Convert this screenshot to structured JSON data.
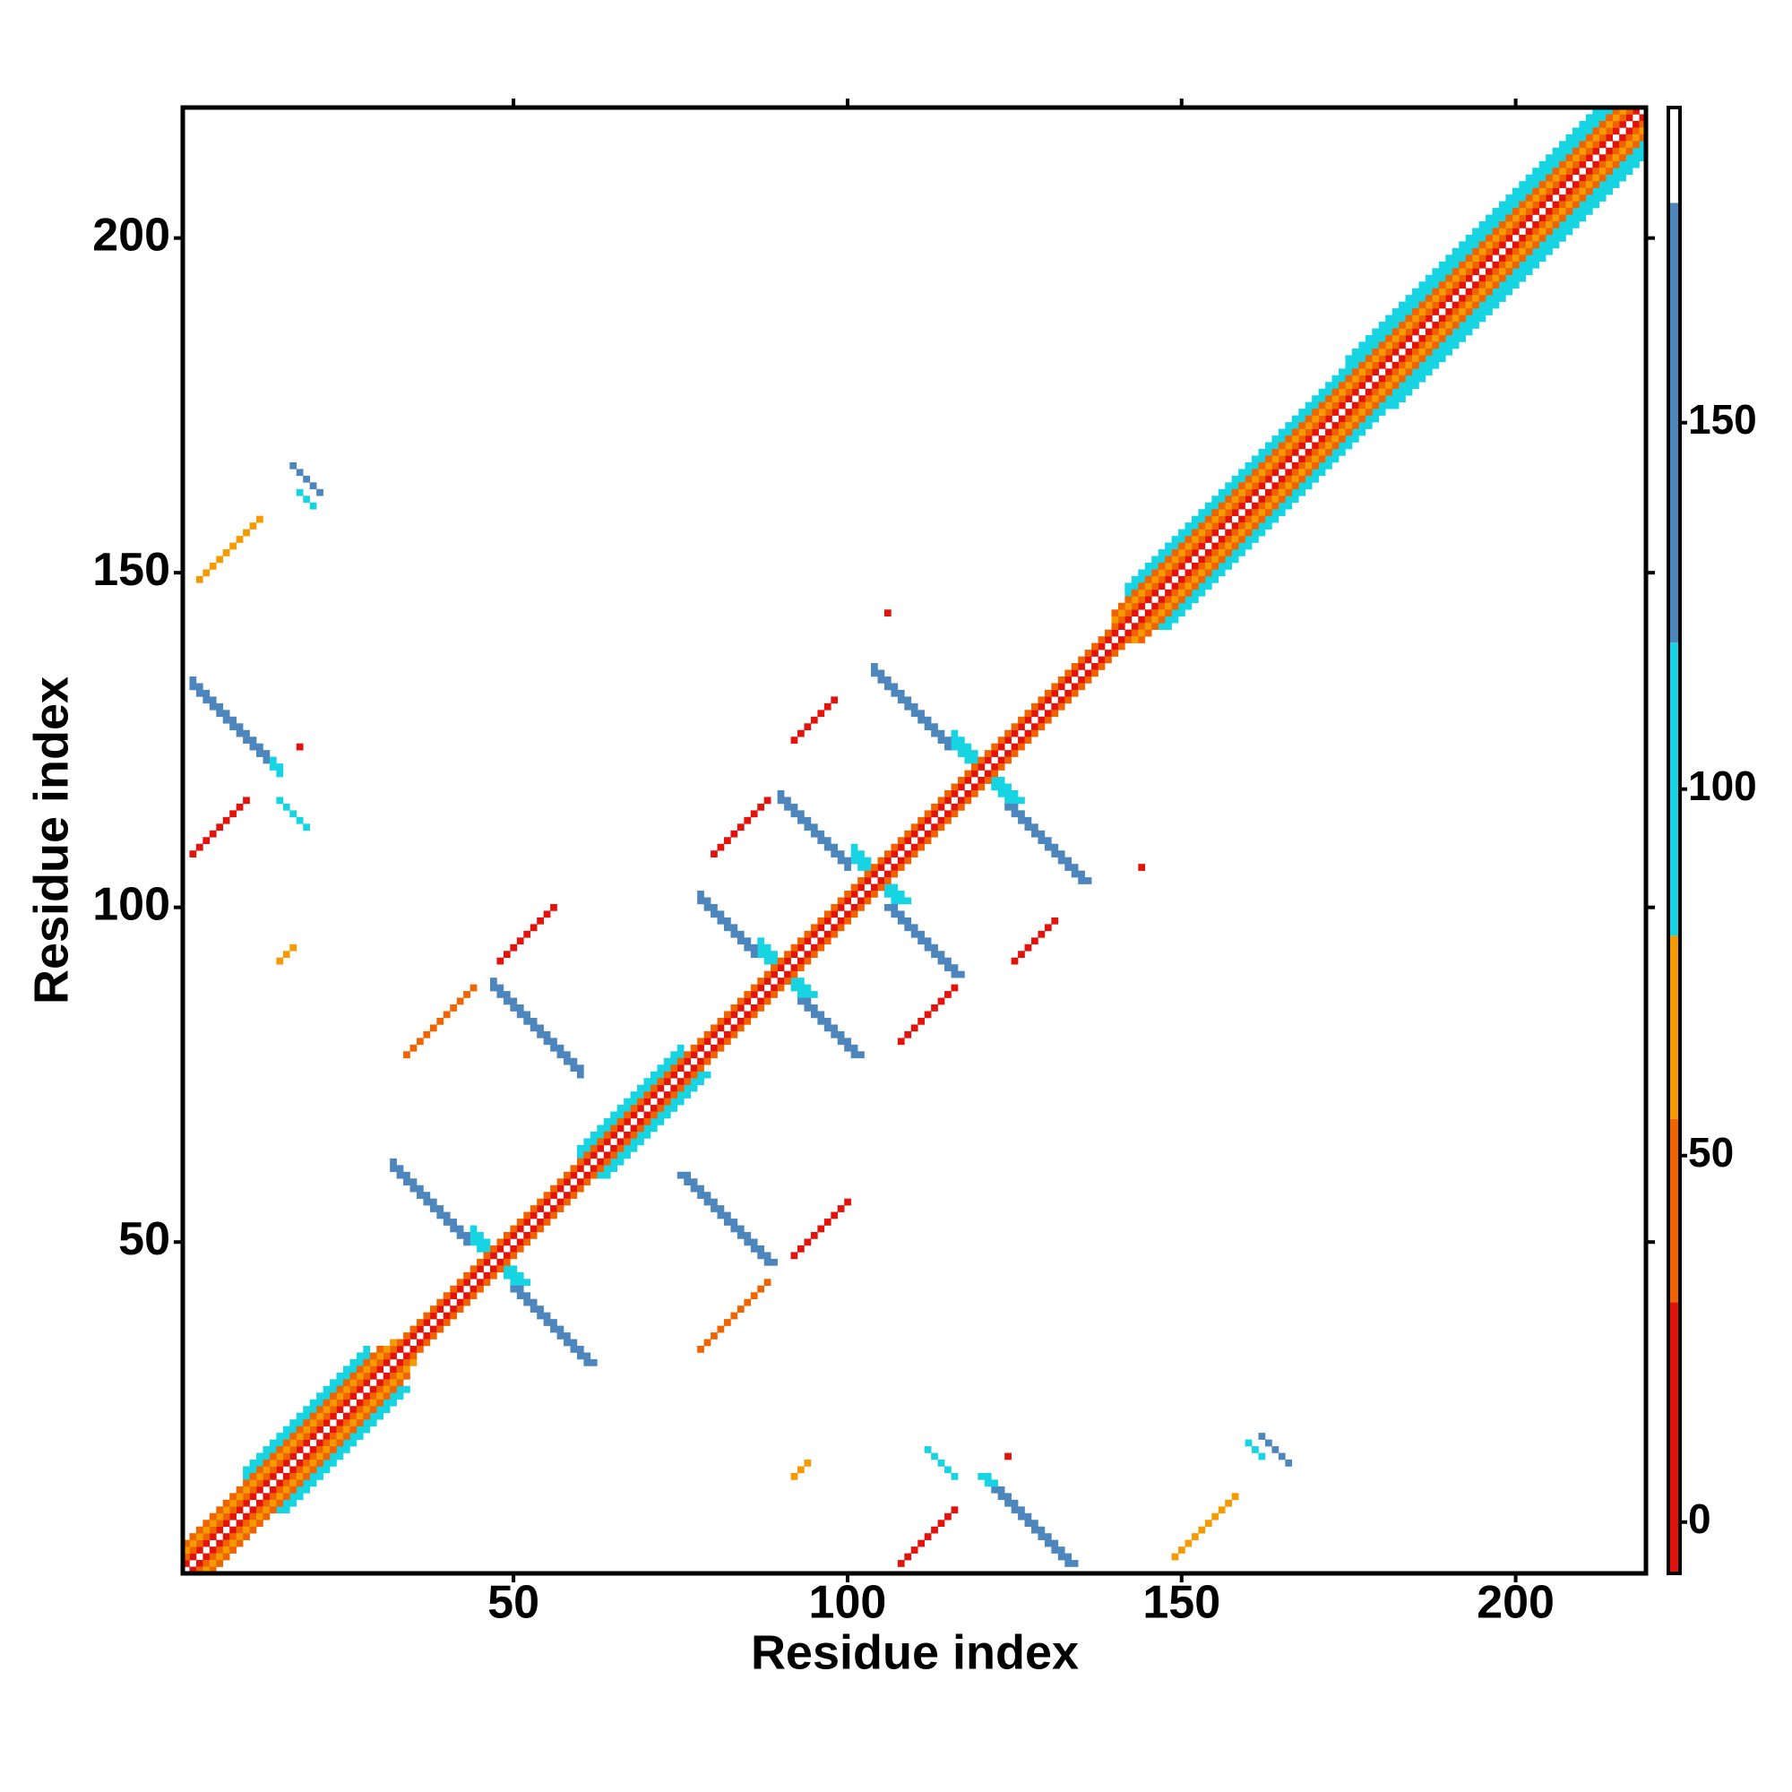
{
  "chart_data": {
    "type": "contact-map",
    "x_label": "Residue index",
    "y_label": "Residue index",
    "xlim": [
      0.5,
      219.5
    ],
    "ylim": [
      0.5,
      219.5
    ],
    "xticks": [
      50,
      100,
      150,
      200
    ],
    "yticks": [
      50,
      100,
      150,
      200
    ],
    "symmetric": true,
    "colorbar": {
      "lim": [
        -7,
        193
      ],
      "ticks": [
        0,
        50,
        100,
        150
      ],
      "bounds": [
        -7,
        30,
        55,
        80,
        120,
        180,
        193
      ],
      "colors": [
        "#e3120b",
        "#f06400",
        "#f59a00",
        "#17d4e3",
        "#4d86bd",
        "#ffffff"
      ]
    },
    "cells": [
      {
        "kind": "anti",
        "sum": 94,
        "from": 44,
        "to": 46,
        "width": 3,
        "value": 100
      },
      {
        "kind": "anti",
        "sum": 180,
        "from": 87,
        "to": 89,
        "width": 3,
        "value": 100
      },
      {
        "kind": "anti",
        "sum": 208,
        "from": 101,
        "to": 103,
        "width": 3,
        "value": 100
      },
      {
        "kind": "anti",
        "sum": 240,
        "from": 116,
        "to": 119,
        "width": 3,
        "value": 100
      },
      {
        "kind": "anti",
        "sum": 93,
        "from": 32,
        "to": 43,
        "width": 2,
        "value": 150
      },
      {
        "kind": "anti",
        "sum": 135,
        "from": 47,
        "to": 60,
        "width": 2,
        "value": 150
      },
      {
        "kind": "anti",
        "sum": 179,
        "from": 78,
        "to": 86,
        "width": 2,
        "value": 150
      },
      {
        "kind": "anti",
        "sum": 206,
        "from": 90,
        "to": 100,
        "width": 2,
        "value": 150
      },
      {
        "kind": "anti",
        "sum": 239,
        "from": 104,
        "to": 115,
        "width": 2,
        "value": 150
      },
      {
        "kind": "anti",
        "sum": 135,
        "from": 2,
        "to": 13,
        "width": 2,
        "value": 150
      },
      {
        "kind": "anti",
        "sum": 135,
        "from": 14,
        "to": 15,
        "width": 2,
        "value": 100
      },
      {
        "kind": "anti",
        "sum": 131,
        "from": 15,
        "to": 19,
        "width": 1,
        "value": 100
      },
      {
        "kind": "anti",
        "sum": 183,
        "from": 17,
        "to": 21,
        "width": 1,
        "value": 150
      },
      {
        "kind": "anti",
        "sum": 180,
        "from": 18,
        "to": 20,
        "width": 1,
        "value": 100
      },
      {
        "kind": "parallel",
        "offset": 106,
        "from": 2,
        "to": 10,
        "width": 1,
        "value": 15
      },
      {
        "kind": "parallel",
        "offset": 106,
        "from": 18,
        "to": 18,
        "width": 1,
        "value": 15
      },
      {
        "kind": "parallel",
        "offset": 146,
        "from": 3,
        "to": 12,
        "width": 1,
        "value": 65
      },
      {
        "kind": "parallel",
        "offset": 44,
        "from": 34,
        "to": 44,
        "width": 1,
        "value": 40
      },
      {
        "kind": "parallel",
        "offset": 44,
        "from": 48,
        "to": 56,
        "width": 1,
        "value": 15
      },
      {
        "kind": "parallel",
        "offset": 28,
        "from": 80,
        "to": 88,
        "width": 1,
        "value": 15
      },
      {
        "kind": "parallel",
        "offset": 33,
        "from": 92,
        "to": 98,
        "width": 1,
        "value": 15
      },
      {
        "kind": "parallel",
        "offset": 38,
        "from": 106,
        "to": 106,
        "width": 1,
        "value": 15
      },
      {
        "kind": "parallel",
        "offset": 77,
        "from": 15,
        "to": 17,
        "width": 1,
        "value": 65
      },
      {
        "kind": "parallel",
        "offset": 5,
        "from": 10,
        "to": 28,
        "width": 2,
        "value": 100
      },
      {
        "kind": "parallel",
        "offset": 5,
        "from": 142,
        "to": 214,
        "width": 2,
        "value": 100
      },
      {
        "kind": "parallel",
        "offset": 7,
        "from": 175,
        "to": 212,
        "width": 1,
        "value": 100
      },
      {
        "kind": "parallel",
        "offset": 3,
        "from": 60,
        "to": 75,
        "width": 2,
        "value": 100
      },
      {
        "kind": "parallel",
        "offset": 1,
        "from": 1,
        "to": 218,
        "width": 1,
        "value": 15
      },
      {
        "kind": "parallel",
        "offset": 2,
        "from": 1,
        "to": 217,
        "width": 1,
        "value": 40
      },
      {
        "kind": "parallel",
        "offset": 3,
        "from": 1,
        "to": 32,
        "width": 1,
        "value": 65
      },
      {
        "kind": "parallel",
        "offset": 3,
        "from": 140,
        "to": 216,
        "width": 1,
        "value": 65
      },
      {
        "kind": "parallel",
        "offset": 4,
        "from": 1,
        "to": 30,
        "width": 1,
        "value": 40
      },
      {
        "kind": "parallel",
        "offset": 4,
        "from": 140,
        "to": 215,
        "width": 1,
        "value": 40
      }
    ]
  }
}
